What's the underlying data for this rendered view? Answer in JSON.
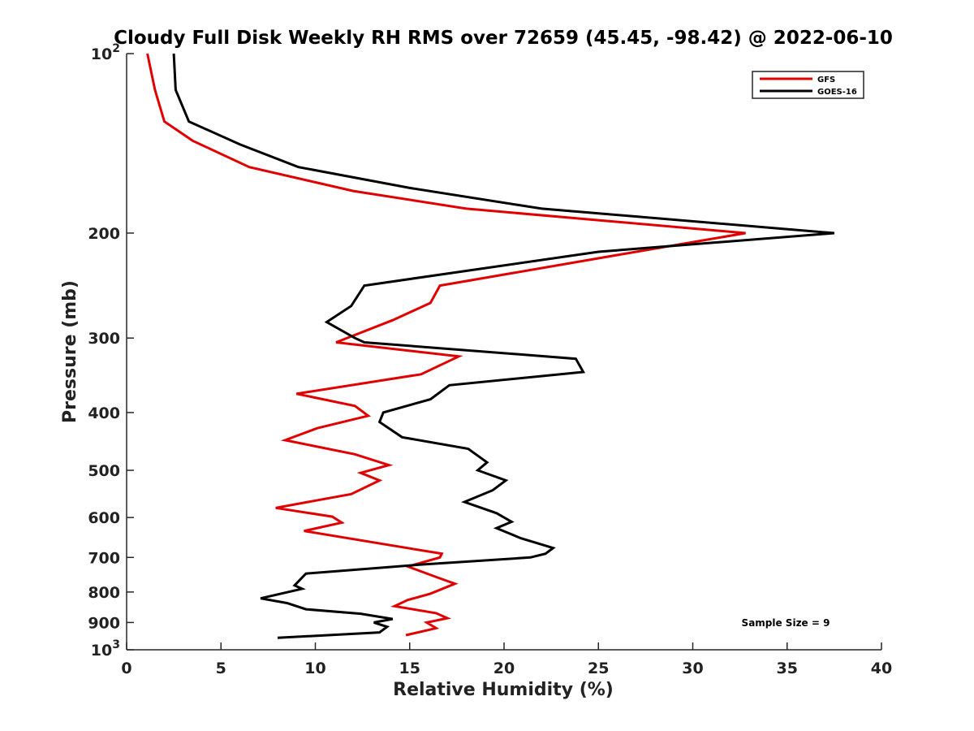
{
  "chart_data": {
    "type": "line",
    "title": "Cloudy Full Disk Weekly RH RMS over 72659 (45.45, -98.42) @ 2022-06-10",
    "xlabel": "Relative Humidity (%)",
    "ylabel": "Pressure (mb)",
    "xlim": [
      0,
      40
    ],
    "ylim": [
      1000,
      100
    ],
    "yscale": "log",
    "grid": false,
    "legend_position": "top-right",
    "x_ticks": [
      0,
      5,
      10,
      15,
      20,
      25,
      30,
      35,
      40
    ],
    "y_ticks": [
      100,
      200,
      300,
      400,
      500,
      600,
      700,
      800,
      900,
      1000
    ],
    "y_tick_labels": [
      {
        "value": 100,
        "base": "10",
        "exp": "2"
      },
      {
        "value": 200,
        "base": "200",
        "exp": ""
      },
      {
        "value": 300,
        "base": "300",
        "exp": ""
      },
      {
        "value": 400,
        "base": "400",
        "exp": ""
      },
      {
        "value": 500,
        "base": "500",
        "exp": ""
      },
      {
        "value": 600,
        "base": "600",
        "exp": ""
      },
      {
        "value": 700,
        "base": "700",
        "exp": ""
      },
      {
        "value": 800,
        "base": "800",
        "exp": ""
      },
      {
        "value": 900,
        "base": "900",
        "exp": ""
      },
      {
        "value": 1000,
        "base": "10",
        "exp": "3"
      }
    ],
    "annotation": "Sample Size = 9",
    "series": [
      {
        "name": "GFS",
        "color": "#e00000",
        "points": [
          [
            1.1,
            100
          ],
          [
            1.5,
            115
          ],
          [
            2.0,
            130
          ],
          [
            3.5,
            140
          ],
          [
            6.5,
            155
          ],
          [
            12,
            170
          ],
          [
            18,
            182
          ],
          [
            32.8,
            200
          ],
          [
            27,
            215
          ],
          [
            16.6,
            245
          ],
          [
            16.1,
            262
          ],
          [
            14.1,
            280
          ],
          [
            11.1,
            305
          ],
          [
            17.6,
            322
          ],
          [
            15.6,
            345
          ],
          [
            9.0,
            372
          ],
          [
            12.1,
            390
          ],
          [
            12.8,
            405
          ],
          [
            10.1,
            425
          ],
          [
            8.4,
            445
          ],
          [
            12.1,
            470
          ],
          [
            13.9,
            490
          ],
          [
            12.4,
            505
          ],
          [
            13.4,
            520
          ],
          [
            11.9,
            548
          ],
          [
            7.9,
            578
          ],
          [
            10.9,
            598
          ],
          [
            11.4,
            612
          ],
          [
            9.4,
            632
          ],
          [
            16.7,
            690
          ],
          [
            16.6,
            700
          ],
          [
            14.9,
            725
          ],
          [
            16.4,
            755
          ],
          [
            17.4,
            775
          ],
          [
            16.1,
            805
          ],
          [
            14.9,
            825
          ],
          [
            14.2,
            845
          ],
          [
            16.4,
            868
          ],
          [
            17.0,
            885
          ],
          [
            15.9,
            900
          ],
          [
            16.4,
            920
          ],
          [
            14.8,
            945
          ]
        ]
      },
      {
        "name": "GOES-16",
        "color": "#000000",
        "points": [
          [
            2.5,
            100
          ],
          [
            2.6,
            115
          ],
          [
            3.3,
            130
          ],
          [
            6,
            142
          ],
          [
            9.1,
            155
          ],
          [
            15,
            168
          ],
          [
            22,
            182
          ],
          [
            37.5,
            200
          ],
          [
            25,
            215
          ],
          [
            12.6,
            245
          ],
          [
            11.9,
            265
          ],
          [
            10.6,
            282
          ],
          [
            12.1,
            300
          ],
          [
            12.6,
            305
          ],
          [
            23.8,
            325
          ],
          [
            24.2,
            342
          ],
          [
            17.1,
            360
          ],
          [
            16.1,
            380
          ],
          [
            13.6,
            400
          ],
          [
            13.4,
            415
          ],
          [
            14.6,
            440
          ],
          [
            18.1,
            460
          ],
          [
            19.1,
            485
          ],
          [
            18.6,
            500
          ],
          [
            20.1,
            520
          ],
          [
            19.4,
            540
          ],
          [
            17.9,
            565
          ],
          [
            19.6,
            590
          ],
          [
            20.4,
            610
          ],
          [
            19.6,
            625
          ],
          [
            20.9,
            650
          ],
          [
            22.6,
            675
          ],
          [
            22.2,
            690
          ],
          [
            21.4,
            700
          ],
          [
            15.5,
            720
          ],
          [
            9.5,
            745
          ],
          [
            8.9,
            780
          ],
          [
            9.3,
            790
          ],
          [
            7.1,
            820
          ],
          [
            8.5,
            835
          ],
          [
            9.5,
            855
          ],
          [
            12.4,
            870
          ],
          [
            14.1,
            888
          ],
          [
            13.1,
            900
          ],
          [
            13.8,
            915
          ],
          [
            13.4,
            935
          ],
          [
            8.0,
            955
          ]
        ]
      }
    ]
  }
}
